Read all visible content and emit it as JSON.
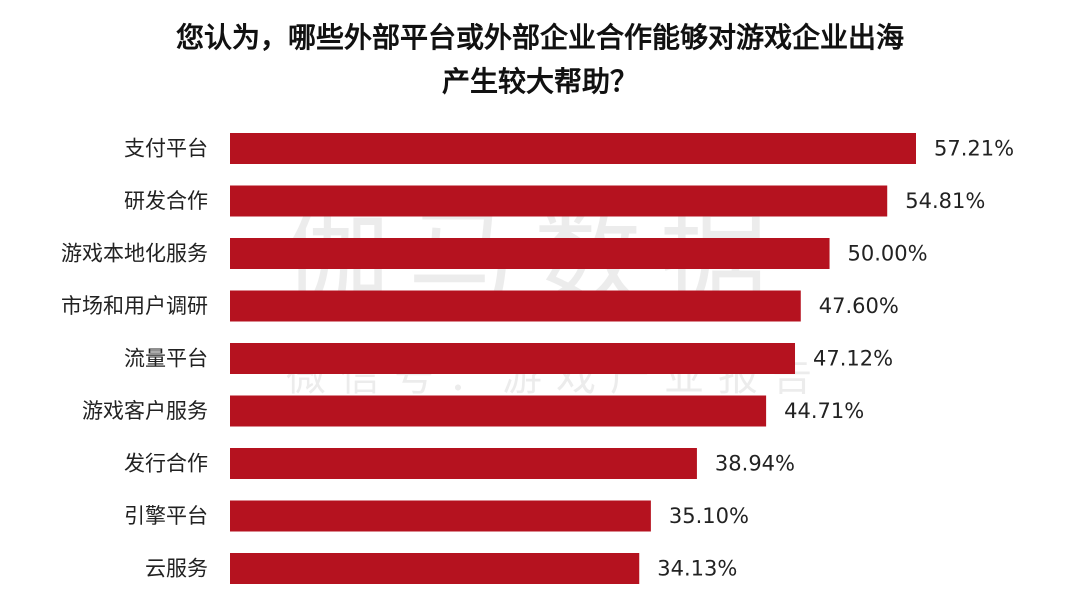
{
  "title_lines": [
    "您认为，哪些外部平台或外部企业合作能够对游戏企业出海",
    "产生较大帮助？"
  ],
  "watermark": {
    "main": "伽马数据",
    "sub": "微信号：游戏产业报告"
  },
  "colors": {
    "bar": "#b5121f",
    "text": "#222222",
    "background": "#ffffff"
  },
  "chart_data": {
    "type": "bar",
    "orientation": "horizontal",
    "categories": [
      "支付平台",
      "研发合作",
      "游戏本地化服务",
      "市场和用户调研",
      "流量平台",
      "游戏客户服务",
      "发行合作",
      "引擎平台",
      "云服务"
    ],
    "values": [
      57.21,
      54.81,
      50.0,
      47.6,
      47.12,
      44.71,
      38.94,
      35.1,
      34.13
    ],
    "value_labels": [
      "57.21%",
      "54.81%",
      "50.00%",
      "47.60%",
      "47.12%",
      "44.71%",
      "38.94%",
      "35.10%",
      "34.13%"
    ],
    "title": "您认为，哪些外部平台或外部企业合作能够对游戏企业出海产生较大帮助？",
    "unit": "%",
    "xlim": [
      0,
      57.21
    ],
    "grid": false,
    "legend": "none"
  }
}
